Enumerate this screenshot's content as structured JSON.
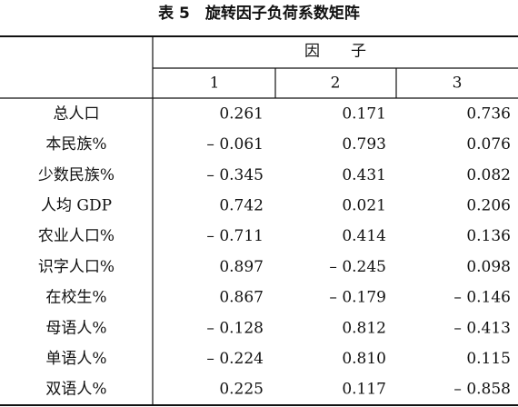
{
  "table": {
    "title": "表 5　旋转因子负荷系数矩阵",
    "group_header": "因　　子",
    "columns": [
      "1",
      "2",
      "3"
    ],
    "rows": [
      [
        "总人口",
        "0.261",
        "0.171",
        "0.736"
      ],
      [
        "本民族%",
        "– 0.061",
        "0.793",
        "0.076"
      ],
      [
        "少数民族%",
        "– 0.345",
        "0.431",
        "0.082"
      ],
      [
        "人均 GDP",
        "0.742",
        "0.021",
        "0.206"
      ],
      [
        "农业人口%",
        "– 0.711",
        "0.414",
        "0.136"
      ],
      [
        "识字人口%",
        "0.897",
        "– 0.245",
        "0.098"
      ],
      [
        "在校生%",
        "0.867",
        "– 0.179",
        "– 0.146"
      ],
      [
        "母语人%",
        "– 0.128",
        "0.812",
        "– 0.413"
      ],
      [
        "单语人%",
        "– 0.224",
        "0.810",
        "0.115"
      ],
      [
        "双语人%",
        "0.225",
        "0.117",
        "– 0.858"
      ]
    ]
  }
}
